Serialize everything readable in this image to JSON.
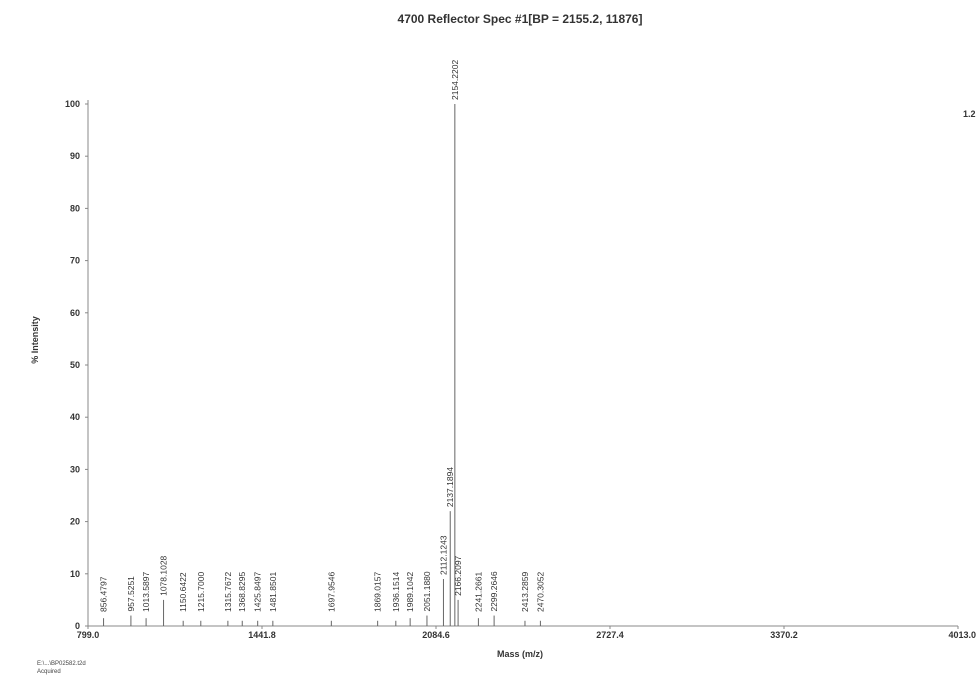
{
  "chart_data": {
    "type": "line",
    "title": "4700 Reflector Spec #1[BP = 2155.2, 11876]",
    "xlabel": "Mass (m/z)",
    "ylabel": "% Intensity",
    "xlim": [
      799.0,
      4013.0
    ],
    "ylim": [
      0,
      100
    ],
    "x_ticks": [
      "799.0",
      "1441.8",
      "2084.6",
      "2727.4",
      "3370.2",
      "4013.0"
    ],
    "y_ticks": [
      "0",
      "10",
      "20",
      "30",
      "40",
      "50",
      "60",
      "70",
      "80",
      "90",
      "100"
    ],
    "right_axis_label": "1.2",
    "peaks": [
      {
        "x": 856.4797,
        "y": 1.5,
        "label": "856.4797"
      },
      {
        "x": 957.5251,
        "y": 2.0,
        "label": "957.5251"
      },
      {
        "x": 1013.5897,
        "y": 1.5,
        "label": "1013.5897"
      },
      {
        "x": 1078.1028,
        "y": 5.0,
        "label": "1078.1028"
      },
      {
        "x": 1150.6422,
        "y": 1.0,
        "label": "1150.6422"
      },
      {
        "x": 1215.7,
        "y": 1.0,
        "label": "1215.7000"
      },
      {
        "x": 1315.7672,
        "y": 1.0,
        "label": "1315.7672"
      },
      {
        "x": 1368.8295,
        "y": 1.0,
        "label": "1368.8295"
      },
      {
        "x": 1425.8497,
        "y": 1.0,
        "label": "1425.8497"
      },
      {
        "x": 1481.8501,
        "y": 1.0,
        "label": "1481.8501"
      },
      {
        "x": 1697.9546,
        "y": 1.0,
        "label": "1697.9546"
      },
      {
        "x": 1869.0157,
        "y": 1.0,
        "label": "1869.0157"
      },
      {
        "x": 1936.1514,
        "y": 1.0,
        "label": "1936.1514"
      },
      {
        "x": 1989.1042,
        "y": 1.5,
        "label": "1989.1042"
      },
      {
        "x": 2051.188,
        "y": 2.0,
        "label": "2051.1880"
      },
      {
        "x": 2112.1243,
        "y": 9.0,
        "label": "2112.1243"
      },
      {
        "x": 2137.1894,
        "y": 22.0,
        "label": "2137.1894"
      },
      {
        "x": 2154.2202,
        "y": 100.0,
        "label": "2154.2202"
      },
      {
        "x": 2166.2097,
        "y": 5.0,
        "label": "2166.2097"
      },
      {
        "x": 2241.2661,
        "y": 1.5,
        "label": "2241.2661"
      },
      {
        "x": 2299.2646,
        "y": 2.0,
        "label": "2299.2646"
      },
      {
        "x": 2413.2859,
        "y": 1.0,
        "label": "2413.2859"
      },
      {
        "x": 2470.3052,
        "y": 1.0,
        "label": "2470.3052"
      }
    ],
    "grid": false,
    "legend": "none"
  },
  "footer": {
    "line1": "E:\\...\\BP02582.t2d",
    "line2": "Acquired"
  }
}
